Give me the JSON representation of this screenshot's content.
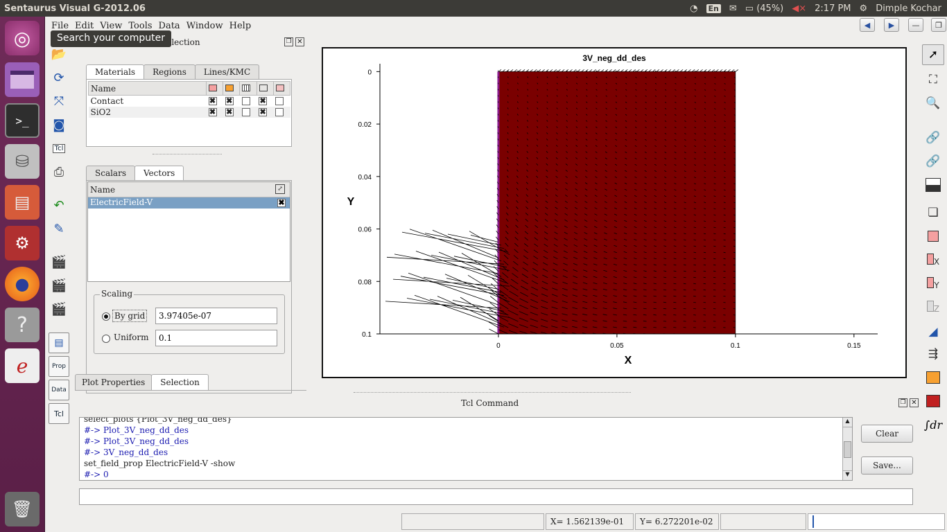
{
  "system_bar": {
    "app_title": "Sentaurus Visual G-2012.06",
    "keyboard": "En",
    "battery": "(45%)",
    "time": "2:17 PM",
    "user": "Dimple Kochar"
  },
  "launcher": {
    "tooltip": "Search your computer"
  },
  "menu": [
    "File",
    "Edit",
    "View",
    "Tools",
    "Data",
    "Window",
    "Help"
  ],
  "selection_panel": {
    "title": "Selection",
    "top_tabs": [
      "Materials",
      "Regions",
      "Lines/KMC"
    ],
    "materials": {
      "header": "Name",
      "rows": [
        {
          "name": "Contact",
          "checks": [
            true,
            true,
            false,
            true,
            false
          ]
        },
        {
          "name": "SiO2",
          "checks": [
            true,
            true,
            false,
            true,
            false
          ]
        }
      ]
    },
    "field_tabs": [
      "Scalars",
      "Vectors"
    ],
    "vectors": {
      "header": "Name",
      "rows": [
        {
          "name": "ElectricField-V",
          "checked": true
        }
      ]
    },
    "scaling": {
      "legend": "Scaling",
      "by_grid_label": "By grid",
      "by_grid_value": "3.97405e-07",
      "uniform_label": "Uniform",
      "uniform_value": "0.1"
    },
    "bottom_tabs": [
      "Plot Properties",
      "Selection"
    ]
  },
  "chart_data": {
    "type": "vector-field",
    "title": "3V_neg_dd_des",
    "xlabel": "X",
    "ylabel": "Y",
    "x_ticks": [
      "0",
      "0.05",
      "0.1",
      "0.15"
    ],
    "y_ticks": [
      "0",
      "0.02",
      "0.04",
      "0.06",
      "0.08",
      "0.1"
    ],
    "xlim": [
      -0.05,
      0.16
    ],
    "ylim": [
      0.1,
      -0.003
    ],
    "y_inverted": true,
    "region": {
      "x": [
        0,
        0.1
      ],
      "y": [
        0,
        0.1
      ],
      "color": "#7a0000"
    },
    "contact_strip": {
      "x": 0,
      "color": "#8b1a8b"
    }
  },
  "tcl": {
    "title": "Tcl Command",
    "log": [
      {
        "text": "select_plots {Plot_3V_neg_dd_des}",
        "type": "cmd"
      },
      {
        "text": "#-> Plot_3V_neg_dd_des",
        "type": "out"
      },
      {
        "text": "#-> Plot_3V_neg_dd_des",
        "type": "out"
      },
      {
        "text": "#-> 3V_neg_dd_des",
        "type": "out"
      },
      {
        "text": "set_field_prop ElectricField-V -show",
        "type": "cmd"
      },
      {
        "text": "#-> 0",
        "type": "out"
      }
    ],
    "clear_label": "Clear",
    "save_label": "Save...",
    "input_value": ""
  },
  "toolbar_labels": {
    "tcl": "Tcl",
    "prop": "Prop",
    "data": "Data"
  },
  "status": {
    "x_readout": "X= 1.562139e-01",
    "y_readout": "Y= 6.272201e-02"
  }
}
